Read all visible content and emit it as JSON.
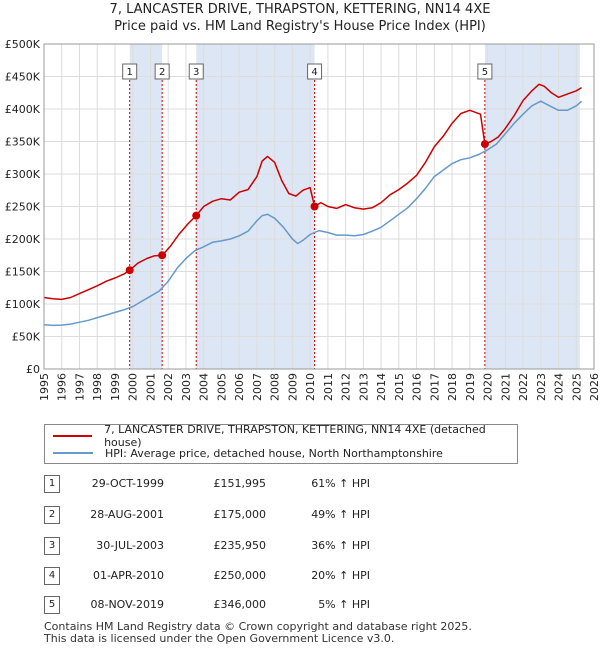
{
  "title_line1": "7, LANCASTER DRIVE, THRAPSTON, KETTERING, NN14 4XE",
  "title_line2": "Price paid vs. HM Land Registry's House Price Index (HPI)",
  "colors": {
    "property": "#cc0000",
    "hpi": "#6699cc",
    "shade": "#dde6f5",
    "grid": "#dddddd"
  },
  "legend": {
    "property_label": "7, LANCASTER DRIVE, THRAPSTON, KETTERING, NN14 4XE (detached house)",
    "hpi_label": "HPI: Average price, detached house, North Northamptonshire"
  },
  "transactions": [
    {
      "num": "1",
      "date": "29-OCT-1999",
      "price": "£151,995",
      "hpi": "61% ↑ HPI"
    },
    {
      "num": "2",
      "date": "28-AUG-2001",
      "price": "£175,000",
      "hpi": "49% ↑ HPI"
    },
    {
      "num": "3",
      "date": "30-JUL-2003",
      "price": "£235,950",
      "hpi": "36% ↑ HPI"
    },
    {
      "num": "4",
      "date": "01-APR-2010",
      "price": "£250,000",
      "hpi": "20% ↑ HPI"
    },
    {
      "num": "5",
      "date": "08-NOV-2019",
      "price": "£346,000",
      "hpi": "5% ↑ HPI"
    }
  ],
  "footer_line1": "Contains HM Land Registry data © Crown copyright and database right 2025.",
  "footer_line2": "This data is licensed under the Open Government Licence v3.0.",
  "chart_data": {
    "type": "line",
    "xlim": [
      1995,
      2026
    ],
    "ylim": [
      0,
      500000
    ],
    "y_ticks": [
      0,
      50000,
      100000,
      150000,
      200000,
      250000,
      300000,
      350000,
      400000,
      450000,
      500000
    ],
    "y_tick_labels": [
      "£0",
      "£50K",
      "£100K",
      "£150K",
      "£200K",
      "£250K",
      "£300K",
      "£350K",
      "£400K",
      "£450K",
      "£500K"
    ],
    "x_ticks": [
      1995,
      1996,
      1997,
      1998,
      1999,
      2000,
      2001,
      2002,
      2003,
      2004,
      2005,
      2006,
      2007,
      2008,
      2009,
      2010,
      2011,
      2012,
      2013,
      2014,
      2015,
      2016,
      2017,
      2018,
      2019,
      2020,
      2021,
      2022,
      2023,
      2024,
      2025,
      2026
    ],
    "shaded_ranges": [
      [
        1999.83,
        2001.66
      ],
      [
        2003.58,
        2010.25
      ],
      [
        2019.85,
        2025.2
      ]
    ],
    "sales": [
      {
        "label": "1",
        "x": 1999.83,
        "y": 151995
      },
      {
        "label": "2",
        "x": 2001.66,
        "y": 175000
      },
      {
        "label": "3",
        "x": 2003.58,
        "y": 235950
      },
      {
        "label": "4",
        "x": 2010.25,
        "y": 250000
      },
      {
        "label": "5",
        "x": 2019.85,
        "y": 346000
      }
    ],
    "series": [
      {
        "name": "7, LANCASTER DRIVE, THRAPSTON, KETTERING, NN14 4XE (detached house)",
        "x": [
          1995,
          1995.5,
          1996,
          1996.5,
          1997,
          1997.5,
          1998,
          1998.5,
          1999,
          1999.5,
          1999.83,
          2000.3,
          2000.8,
          2001.2,
          2001.66,
          2002.1,
          2002.6,
          2003.1,
          2003.58,
          2004,
          2004.5,
          2005,
          2005.5,
          2006,
          2006.5,
          2007,
          2007.3,
          2007.6,
          2008,
          2008.4,
          2008.8,
          2009.2,
          2009.6,
          2010,
          2010.25,
          2010.6,
          2011,
          2011.5,
          2012,
          2012.5,
          2013,
          2013.5,
          2014,
          2014.5,
          2015,
          2015.5,
          2016,
          2016.5,
          2017,
          2017.5,
          2018,
          2018.5,
          2019,
          2019.6,
          2019.85,
          2020.2,
          2020.6,
          2021,
          2021.5,
          2022,
          2022.5,
          2022.9,
          2023.2,
          2023.6,
          2024,
          2024.5,
          2025,
          2025.3
        ],
        "values": [
          110000,
          108000,
          107000,
          110000,
          116000,
          122000,
          128000,
          135000,
          140000,
          146000,
          151995,
          163000,
          170000,
          174000,
          175000,
          188000,
          207000,
          223000,
          235950,
          250000,
          258000,
          262000,
          260000,
          272000,
          276000,
          296000,
          320000,
          327000,
          318000,
          290000,
          270000,
          266000,
          275000,
          279000,
          250000,
          256000,
          250000,
          247000,
          253000,
          248000,
          246000,
          248000,
          256000,
          268000,
          276000,
          286000,
          298000,
          318000,
          342000,
          358000,
          378000,
          393000,
          398000,
          392000,
          346000,
          350000,
          357000,
          370000,
          390000,
          413000,
          428000,
          438000,
          435000,
          425000,
          418000,
          423000,
          428000,
          433000
        ]
      },
      {
        "name": "HPI: Average price, detached house, North Northamptonshire",
        "x": [
          1995,
          1995.5,
          1996,
          1996.5,
          1997,
          1997.5,
          1998,
          1998.5,
          1999,
          1999.5,
          2000,
          2000.5,
          2001,
          2001.5,
          2002,
          2002.5,
          2003,
          2003.5,
          2004,
          2004.5,
          2005,
          2005.5,
          2006,
          2006.5,
          2007,
          2007.3,
          2007.6,
          2008,
          2008.5,
          2009,
          2009.3,
          2009.6,
          2010,
          2010.5,
          2011,
          2011.5,
          2012,
          2012.5,
          2013,
          2013.5,
          2014,
          2014.5,
          2015,
          2015.5,
          2016,
          2016.5,
          2017,
          2017.5,
          2018,
          2018.5,
          2019,
          2019.5,
          2020,
          2020.5,
          2021,
          2021.5,
          2022,
          2022.5,
          2023,
          2023.5,
          2024,
          2024.5,
          2025,
          2025.3
        ],
        "values": [
          68000,
          67000,
          67500,
          69000,
          72000,
          75000,
          79000,
          83000,
          87000,
          91000,
          96000,
          104000,
          112000,
          120000,
          135000,
          155000,
          170000,
          182000,
          188000,
          195000,
          197000,
          200000,
          205000,
          212000,
          228000,
          236000,
          238000,
          232000,
          218000,
          200000,
          193000,
          198000,
          207000,
          213000,
          210000,
          206000,
          206000,
          205000,
          207000,
          212000,
          218000,
          228000,
          238000,
          248000,
          262000,
          278000,
          296000,
          306000,
          316000,
          322000,
          325000,
          330000,
          337000,
          346000,
          362000,
          378000,
          392000,
          405000,
          412000,
          405000,
          398000,
          398000,
          405000,
          412000
        ]
      }
    ]
  }
}
